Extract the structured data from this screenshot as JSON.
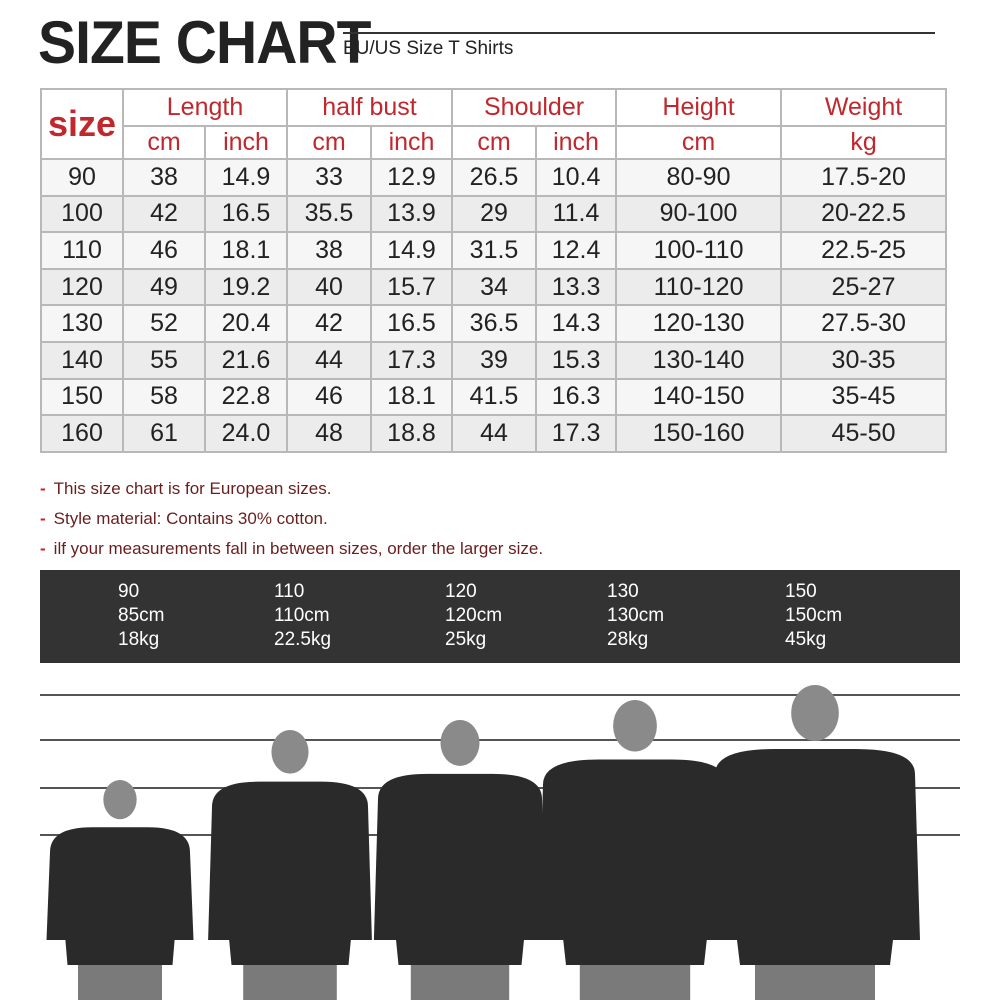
{
  "title": "SIZE CHART",
  "subtitle": "EU/US Size T Shirts",
  "table": {
    "size_header": "size",
    "groups": [
      {
        "label": "Length",
        "units": [
          "cm",
          "inch"
        ]
      },
      {
        "label": "half bust",
        "units": [
          "cm",
          "inch"
        ]
      },
      {
        "label": "Shoulder",
        "units": [
          "cm",
          "inch"
        ]
      },
      {
        "label": "Height",
        "units": [
          "cm"
        ]
      },
      {
        "label": "Weight",
        "units": [
          "kg"
        ]
      }
    ],
    "rows": [
      [
        "90",
        "38",
        "14.9",
        "33",
        "12.9",
        "26.5",
        "10.4",
        "80-90",
        "17.5-20"
      ],
      [
        "100",
        "42",
        "16.5",
        "35.5",
        "13.9",
        "29",
        "11.4",
        "90-100",
        "20-22.5"
      ],
      [
        "110",
        "46",
        "18.1",
        "38",
        "14.9",
        "31.5",
        "12.4",
        "100-110",
        "22.5-25"
      ],
      [
        "120",
        "49",
        "19.2",
        "40",
        "15.7",
        "34",
        "13.3",
        "110-120",
        "25-27"
      ],
      [
        "130",
        "52",
        "20.4",
        "42",
        "16.5",
        "36.5",
        "14.3",
        "120-130",
        "27.5-30"
      ],
      [
        "140",
        "55",
        "21.6",
        "44",
        "17.3",
        "39",
        "15.3",
        "130-140",
        "30-35"
      ],
      [
        "150",
        "58",
        "22.8",
        "46",
        "18.1",
        "41.5",
        "16.3",
        "140-150",
        "35-45"
      ],
      [
        "160",
        "61",
        "24.0",
        "48",
        "18.8",
        "44",
        "17.3",
        "150-160",
        "45-50"
      ]
    ]
  },
  "notes": [
    "This size chart is for European sizes.",
    "Style material: Contains 30% cotton.",
    "ilf your measurements fall in between sizes, order the larger size."
  ],
  "models": [
    {
      "size": "90",
      "height": "85cm",
      "weight": "18kg"
    },
    {
      "size": "110",
      "height": "110cm",
      "weight": "22.5kg"
    },
    {
      "size": "120",
      "height": "120cm",
      "weight": "25kg"
    },
    {
      "size": "130",
      "height": "130cm",
      "weight": "28kg"
    },
    {
      "size": "150",
      "height": "150cm",
      "weight": "45kg"
    }
  ],
  "colors": {
    "header_red": "#c0282d",
    "band": "#333333",
    "shirt": "#2a2a2a"
  }
}
